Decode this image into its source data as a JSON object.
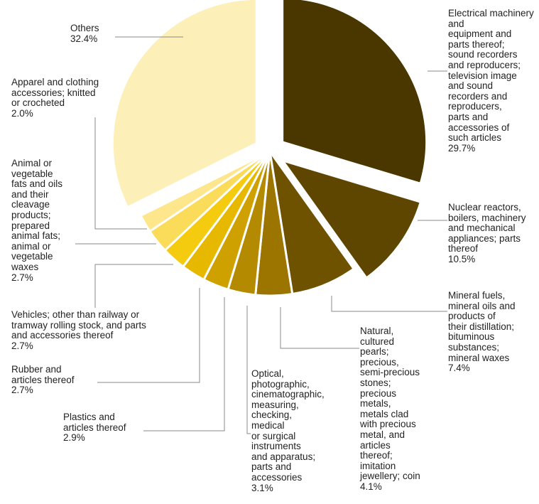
{
  "chart_data": {
    "type": "pie",
    "start_angle_deg": 0,
    "direction": "clockwise",
    "slices": [
      {
        "label": "Electrical machinery and\nequipment and\nparts thereof;\nsound recorders\nand reproducers;\ntelevision image\nand sound\nrecorders and\nreproducers,\nparts and\naccessories of\nsuch articles",
        "value": 29.7,
        "display": "29.7%",
        "color": "#4a3700",
        "exploded": true
      },
      {
        "label": "Nuclear reactors,\nboilers, machinery\nand mechanical\nappliances; parts\nthereof",
        "value": 10.5,
        "display": "10.5%",
        "color": "#5e4500",
        "exploded": true
      },
      {
        "label": "Mineral fuels,\nmineral oils and\nproducts of\ntheir distillation;\nbituminous\nsubstances;\nmineral waxes",
        "value": 7.4,
        "display": "7.4%",
        "color": "#6e5200",
        "exploded": false
      },
      {
        "label": "Natural,\ncultured\npearls;\nprecious,\nsemi-precious\nstones;\nprecious\nmetals,\nmetals clad\nwith precious\nmetal, and\narticles\nthereof;\nimitation\njewellery; coin",
        "value": 4.1,
        "display": "4.1%",
        "color": "#9c7400",
        "exploded": false
      },
      {
        "label": "Optical,\nphotographic,\ncinematographic,\nmeasuring,\nchecking,\nmedical\nor surgical\ninstruments\nand apparatus;\nparts and\naccessories",
        "value": 3.1,
        "display": "3.1%",
        "color": "#b38a00",
        "exploded": false
      },
      {
        "label": "Plastics and\narticles thereof",
        "value": 2.9,
        "display": "2.9%",
        "color": "#cfa100",
        "exploded": false
      },
      {
        "label": "Rubber and\narticles thereof",
        "value": 2.7,
        "display": "2.7%",
        "color": "#e6b800",
        "exploded": false
      },
      {
        "label": "Vehicles; other than railway or\ntramway rolling stock, and parts\nand accessories thereof",
        "value": 2.7,
        "display": "2.7%",
        "color": "#f5cb10",
        "exploded": false
      },
      {
        "label": "Animal or\nvegetable\nfats and oils\nand their\ncleavage\nproducts;\nprepared\nanimal fats;\nanimal or\nvegetable\nwaxes",
        "value": 2.7,
        "display": "2.7%",
        "color": "#fbdb5a",
        "exploded": false
      },
      {
        "label": "Apparel and clothing\naccessories; knitted\nor crocheted",
        "value": 2.0,
        "display": "2.0%",
        "color": "#fde68c",
        "exploded": false
      },
      {
        "label": "Others",
        "value": 32.4,
        "display": "32.4%",
        "color": "#fdefb8",
        "exploded": true
      }
    ]
  }
}
